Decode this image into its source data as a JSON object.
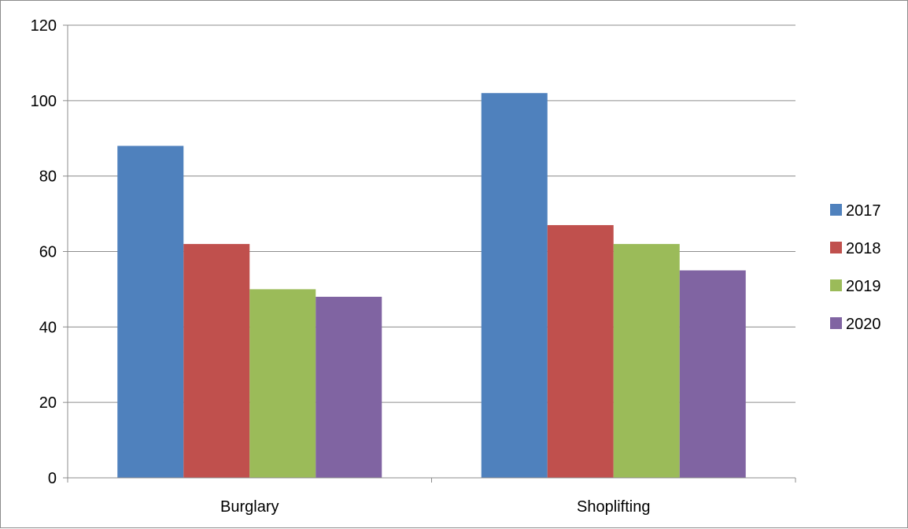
{
  "chart_data": {
    "type": "bar",
    "title": "",
    "xlabel": "",
    "ylabel": "",
    "categories": [
      "Burglary",
      "Shoplifting"
    ],
    "series": [
      {
        "name": "2017",
        "values": [
          88,
          102
        ],
        "color": "#4F81BD"
      },
      {
        "name": "2018",
        "values": [
          62,
          67
        ],
        "color": "#C0504D"
      },
      {
        "name": "2019",
        "values": [
          50,
          62
        ],
        "color": "#9BBB59"
      },
      {
        "name": "2020",
        "values": [
          48,
          55
        ],
        "color": "#8064A2"
      }
    ],
    "ylim": [
      0,
      120
    ],
    "yticks": [
      0,
      20,
      40,
      60,
      80,
      100,
      120
    ],
    "grid": true,
    "legend": "right"
  }
}
